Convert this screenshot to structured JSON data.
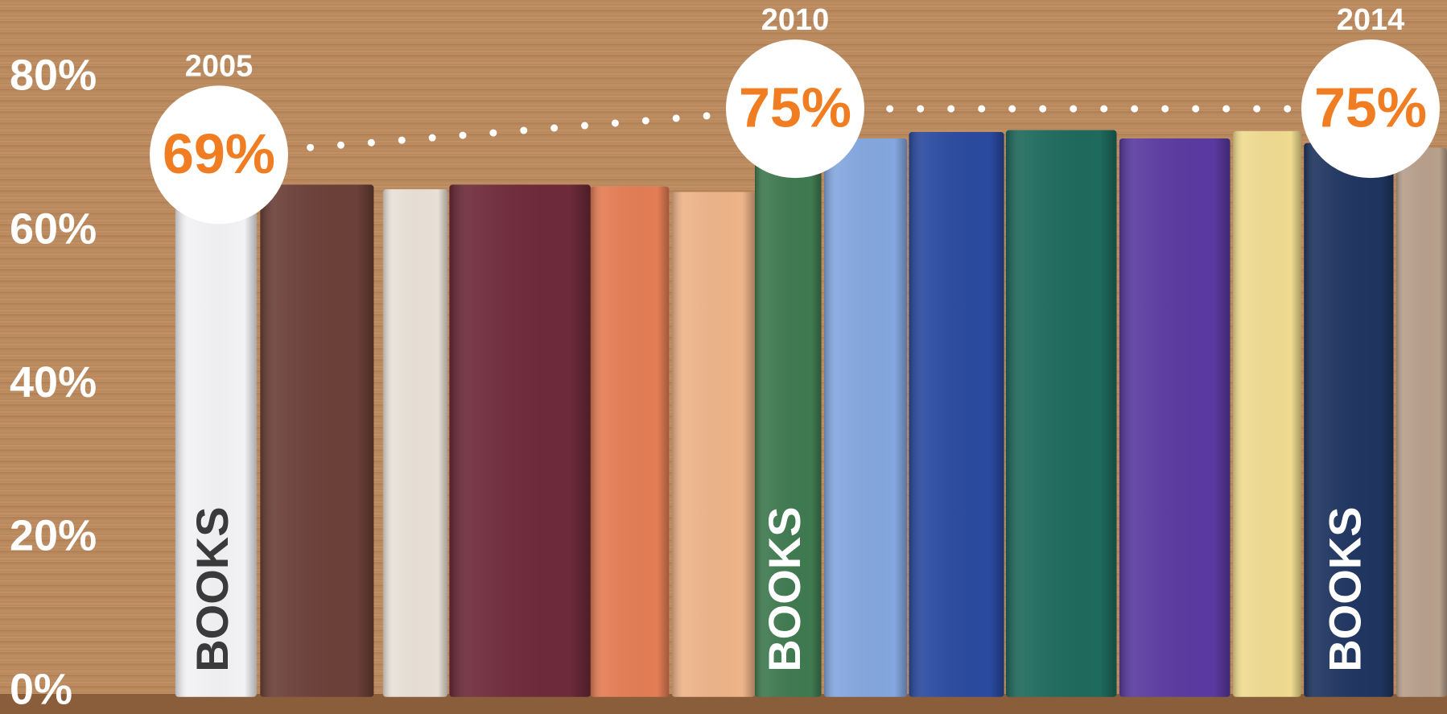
{
  "chart_data": {
    "type": "line",
    "categories": [
      "2005",
      "2010",
      "2014"
    ],
    "values": [
      69,
      75,
      75
    ],
    "value_labels": [
      "69%",
      "75%",
      "75%"
    ],
    "book_label": "BOOKS",
    "color": "#f07d22",
    "ylim": [
      0,
      80
    ],
    "yticks": [
      {
        "value": 0,
        "label": "0%"
      },
      {
        "value": 20,
        "label": "20%"
      },
      {
        "value": 40,
        "label": "40%"
      },
      {
        "value": 60,
        "label": "60%"
      },
      {
        "value": 80,
        "label": "80%"
      }
    ],
    "grid": false
  }
}
